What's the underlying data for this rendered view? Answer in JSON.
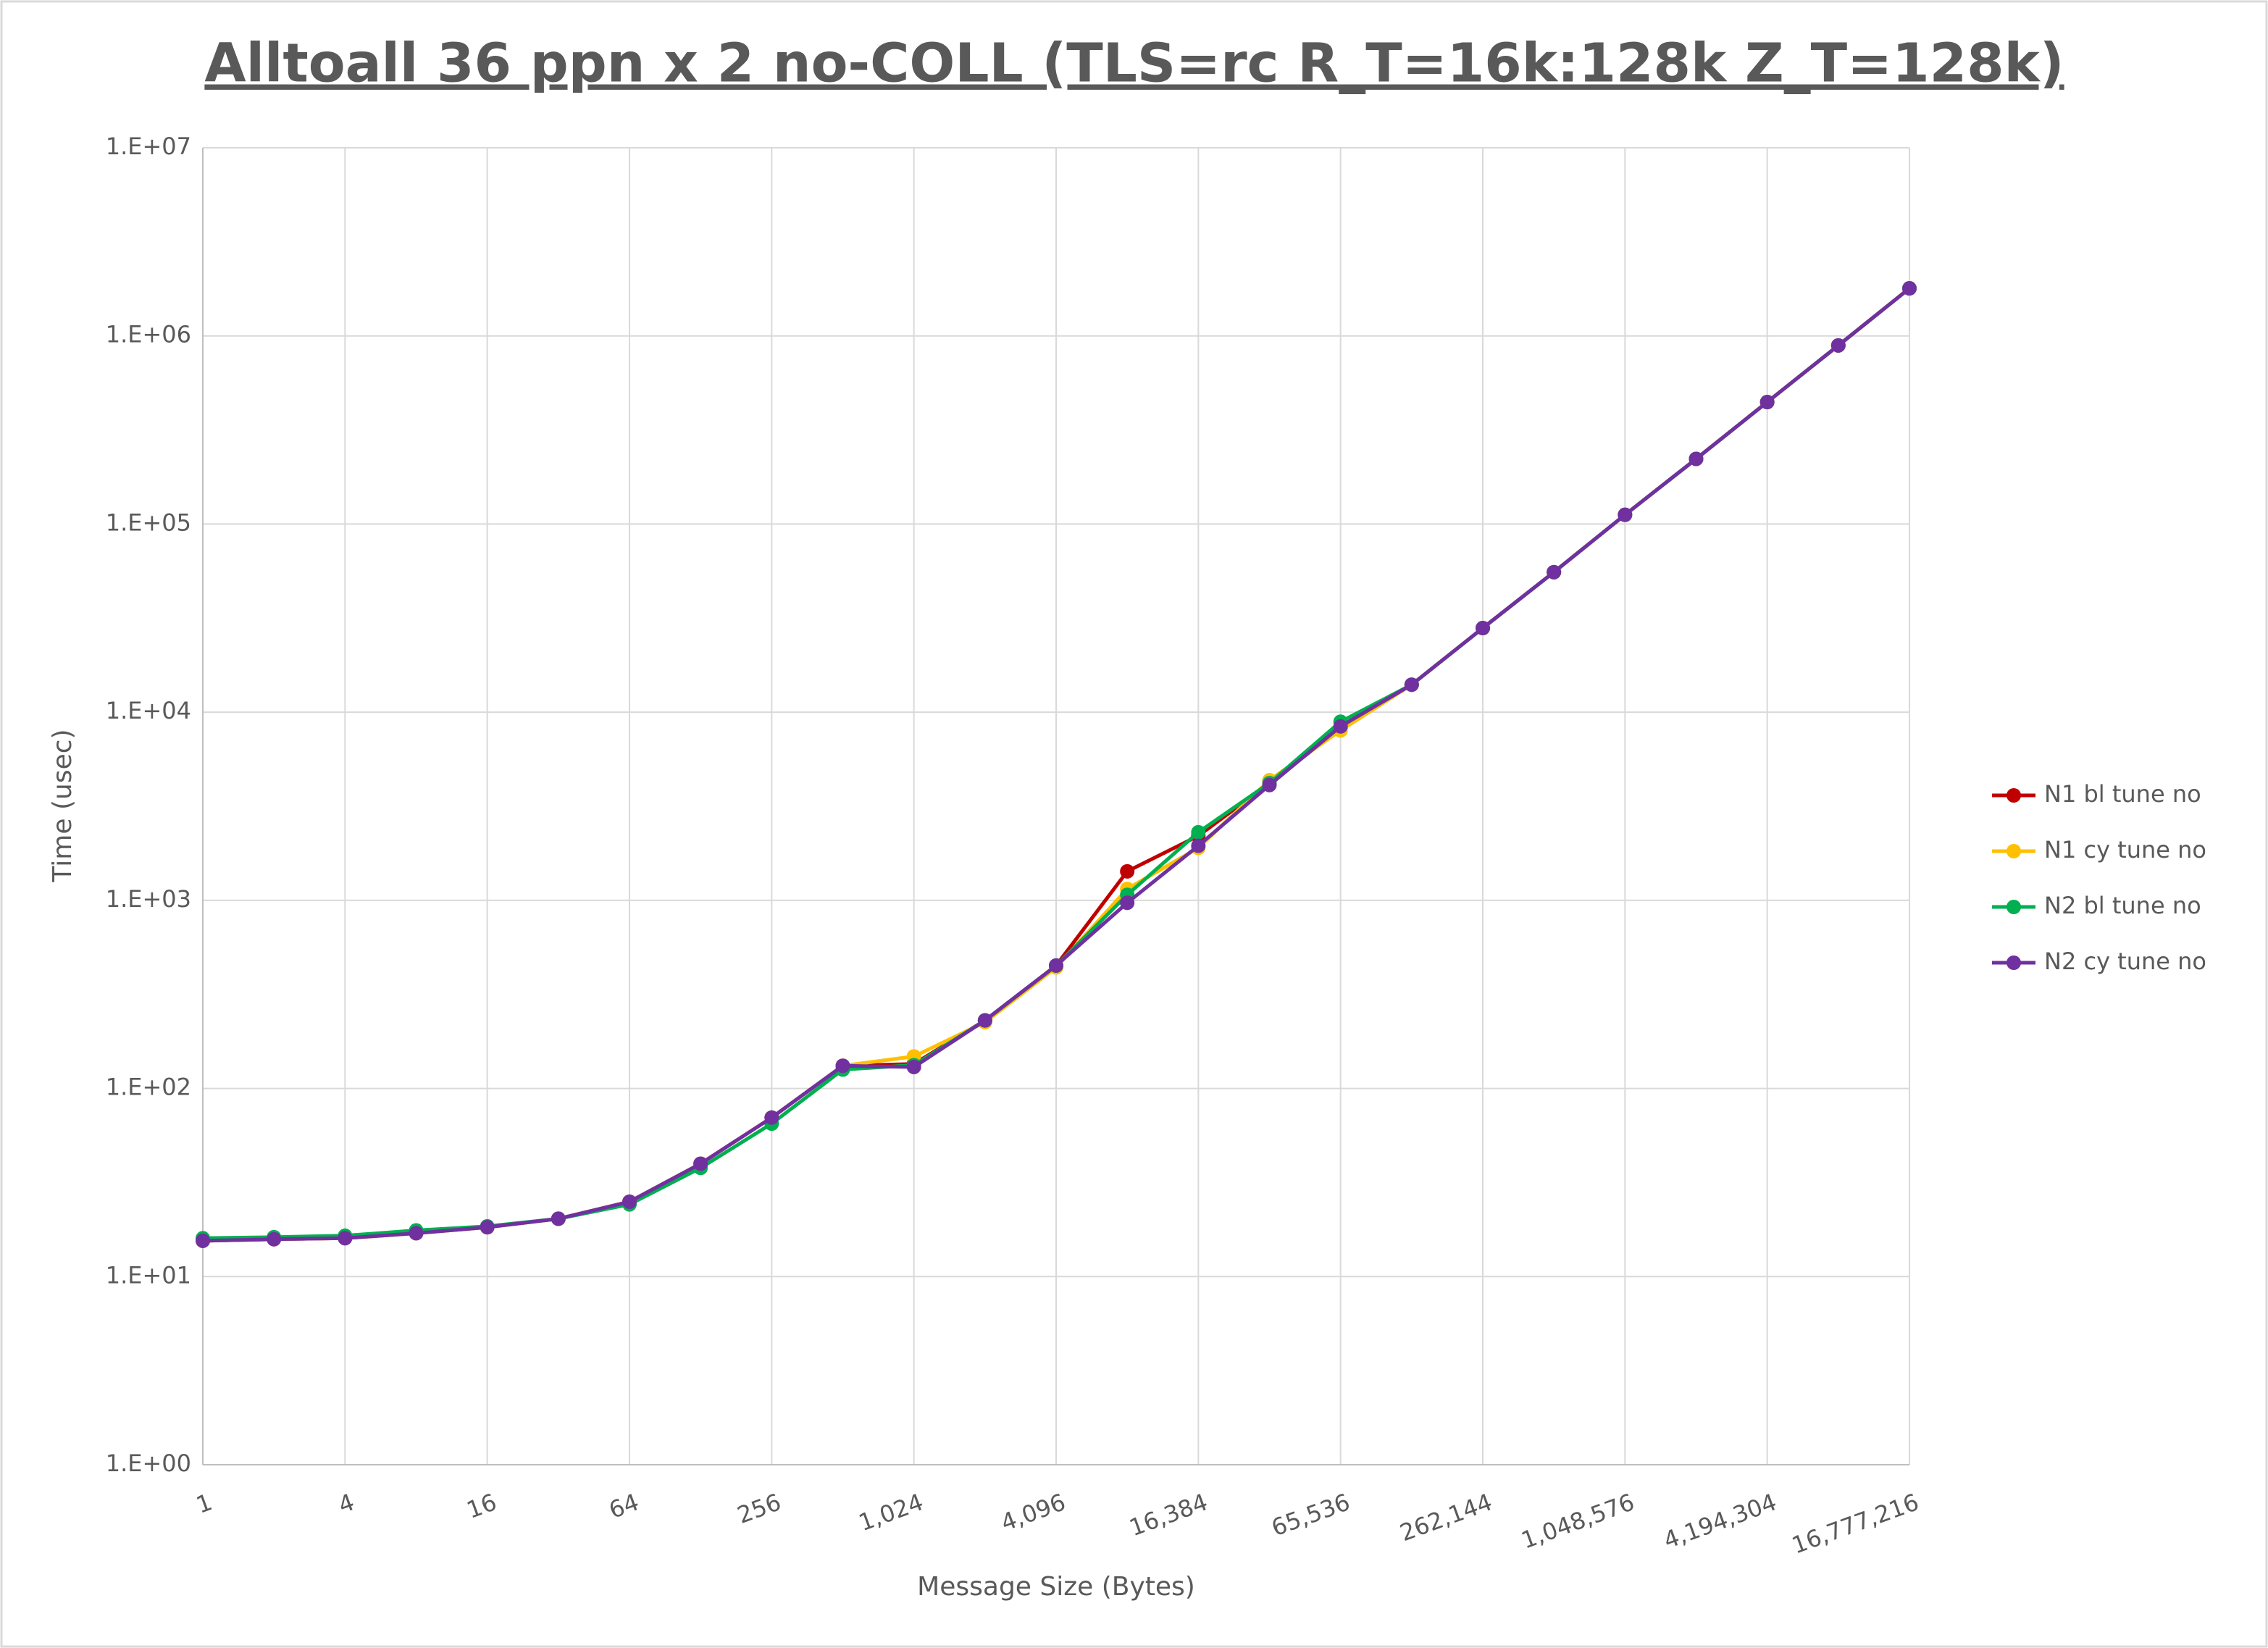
{
  "chart_data": {
    "type": "line",
    "title": "Alltoall 36 ppn x 2 no-COLL (TLS=rc R_T=16k:128k Z_T=128k)",
    "x_label": "Message Size (Bytes)",
    "y_label": "Time (usec)",
    "x": [
      1,
      2,
      4,
      8,
      16,
      32,
      64,
      128,
      256,
      512,
      1024,
      2048,
      4096,
      8192,
      16384,
      32768,
      65536,
      131072,
      262144,
      524288,
      1048576,
      2097152,
      4194304,
      8388608,
      16777216
    ],
    "series": [
      {
        "name": "N1 bl tune no",
        "color": "#c00000",
        "values": [
          15.5,
          15.8,
          16,
          17,
          18.3,
          20.3,
          25,
          39.8,
          70,
          132,
          135,
          230,
          450,
          1425,
          2200,
          4200,
          8200,
          14000,
          28000,
          55500,
          112000,
          222000,
          445000,
          890000,
          1790000
        ]
      },
      {
        "name": "N1 cy tune no",
        "color": "#ffc000",
        "values": [
          15.5,
          15.8,
          16,
          17,
          18.3,
          20.3,
          25,
          39.8,
          70,
          132,
          148,
          225,
          440,
          1150,
          1900,
          4350,
          8000,
          14000,
          28000,
          55500,
          112000,
          222000,
          445000,
          890000,
          1790000
        ]
      },
      {
        "name": "N2 bl tune no",
        "color": "#00b050",
        "values": [
          16,
          16.2,
          16.5,
          17.6,
          18.5,
          20.3,
          24.2,
          37.8,
          65,
          126,
          133,
          230,
          450,
          1070,
          2300,
          4200,
          8900,
          14000,
          28000,
          55500,
          112000,
          222000,
          445000,
          890000,
          1790000
        ]
      },
      {
        "name": "N2 cy tune no",
        "color": "#7030a0",
        "values": [
          15.5,
          15.8,
          16,
          17,
          18.3,
          20.3,
          25,
          39.8,
          70,
          132,
          130,
          230,
          450,
          970,
          1950,
          4100,
          8400,
          14000,
          28000,
          55500,
          112000,
          222000,
          445000,
          890000,
          1790000
        ]
      }
    ],
    "xlog": 2,
    "ylog": 10,
    "xlim": [
      1,
      16777216
    ],
    "ylim": [
      1,
      10000000
    ],
    "xticks": [
      1,
      4,
      16,
      64,
      256,
      {
        "value": 1024,
        "label": "1,024"
      },
      {
        "value": 4096,
        "label": "4,096"
      },
      {
        "value": 16384,
        "label": "16,384"
      },
      {
        "value": 65536,
        "label": "65,536"
      },
      {
        "value": 262144,
        "label": "262,144"
      },
      {
        "value": 1048576,
        "label": "1,048,576"
      },
      {
        "value": 4194304,
        "label": "4,194,304"
      },
      {
        "value": 16777216,
        "label": "16,777,216"
      }
    ],
    "yticks": [
      {
        "value": 1,
        "label": "1.E+00"
      },
      {
        "value": 10,
        "label": "1.E+01"
      },
      {
        "value": 100,
        "label": "1.E+02"
      },
      {
        "value": 1000,
        "label": "1.E+03"
      },
      {
        "value": 10000,
        "label": "1.E+04"
      },
      {
        "value": 100000,
        "label": "1.E+05"
      },
      {
        "value": 1000000,
        "label": "1.E+06"
      },
      {
        "value": 10000000,
        "label": "1.E+07"
      }
    ],
    "grid": true,
    "legend": "right"
  }
}
